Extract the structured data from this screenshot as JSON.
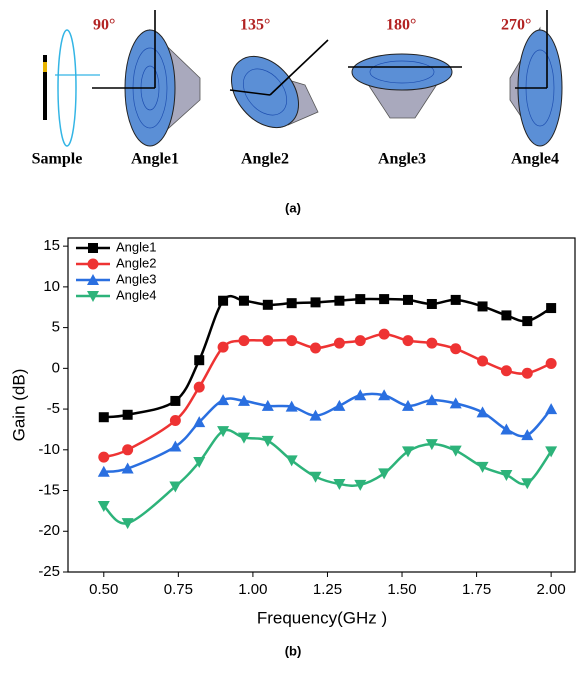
{
  "panel_a": {
    "angles": [
      "90°",
      "135°",
      "180°",
      "270°"
    ],
    "labels": [
      "Sample",
      "Angle1",
      "Angle2",
      "Angle3",
      "Angle4"
    ],
    "caption": "(a)"
  },
  "chart_data": {
    "type": "line",
    "caption": "(b)",
    "x_label": "Frequency(GHz )",
    "y_label": "Gain (dB)",
    "x": [
      0.5,
      0.58,
      0.74,
      0.82,
      0.9,
      0.97,
      1.05,
      1.13,
      1.21,
      1.29,
      1.36,
      1.44,
      1.52,
      1.6,
      1.68,
      1.77,
      1.85,
      1.92,
      2.0
    ],
    "series": [
      {
        "name": "Angle1",
        "color": "#000000",
        "marker": "square",
        "values": [
          -6,
          -5.7,
          -4,
          1,
          8.3,
          8.3,
          7.8,
          8,
          8.1,
          8.3,
          8.5,
          8.5,
          8.4,
          7.9,
          8.4,
          7.6,
          6.5,
          5.8,
          7.4
        ]
      },
      {
        "name": "Angle2",
        "color": "#ee3333",
        "marker": "circle",
        "values": [
          -10.9,
          -10,
          -6.4,
          -2.3,
          2.6,
          3.4,
          3.4,
          3.4,
          2.5,
          3.1,
          3.4,
          4.2,
          3.4,
          3.1,
          2.4,
          0.9,
          -0.3,
          -0.6,
          0.6
        ]
      },
      {
        "name": "Angle3",
        "color": "#2a6fe0",
        "marker": "triangle-up",
        "values": [
          -12.7,
          -12.3,
          -9.6,
          -6.6,
          -3.9,
          -4,
          -4.6,
          -4.7,
          -5.8,
          -4.6,
          -3.3,
          -3.3,
          -4.6,
          -3.9,
          -4.3,
          -5.4,
          -7.5,
          -8.2,
          -5
        ]
      },
      {
        "name": "Angle4",
        "color": "#2db37a",
        "marker": "triangle-down",
        "values": [
          -16.9,
          -19,
          -14.5,
          -11.5,
          -7.7,
          -8.5,
          -8.9,
          -11.3,
          -13.3,
          -14.2,
          -14.3,
          -12.9,
          -10.2,
          -9.3,
          -10.1,
          -12.1,
          -13.1,
          -14.1,
          -10.2
        ]
      }
    ],
    "xlim": [
      0.38,
      2.08
    ],
    "ylim": [
      -25,
      16
    ],
    "xticks": [
      {
        "value": 0.5,
        "label": "0.50"
      },
      0.75,
      {
        "value": 1.0,
        "label": "1.00"
      },
      1.25,
      {
        "value": 1.5,
        "label": "1.50"
      },
      1.75,
      {
        "value": 2.0,
        "label": "2.00"
      }
    ],
    "yticks": [
      15,
      10,
      5,
      0,
      -5,
      -10,
      -15,
      -20,
      -25
    ],
    "legend": "upper-left",
    "smooth": true
  }
}
